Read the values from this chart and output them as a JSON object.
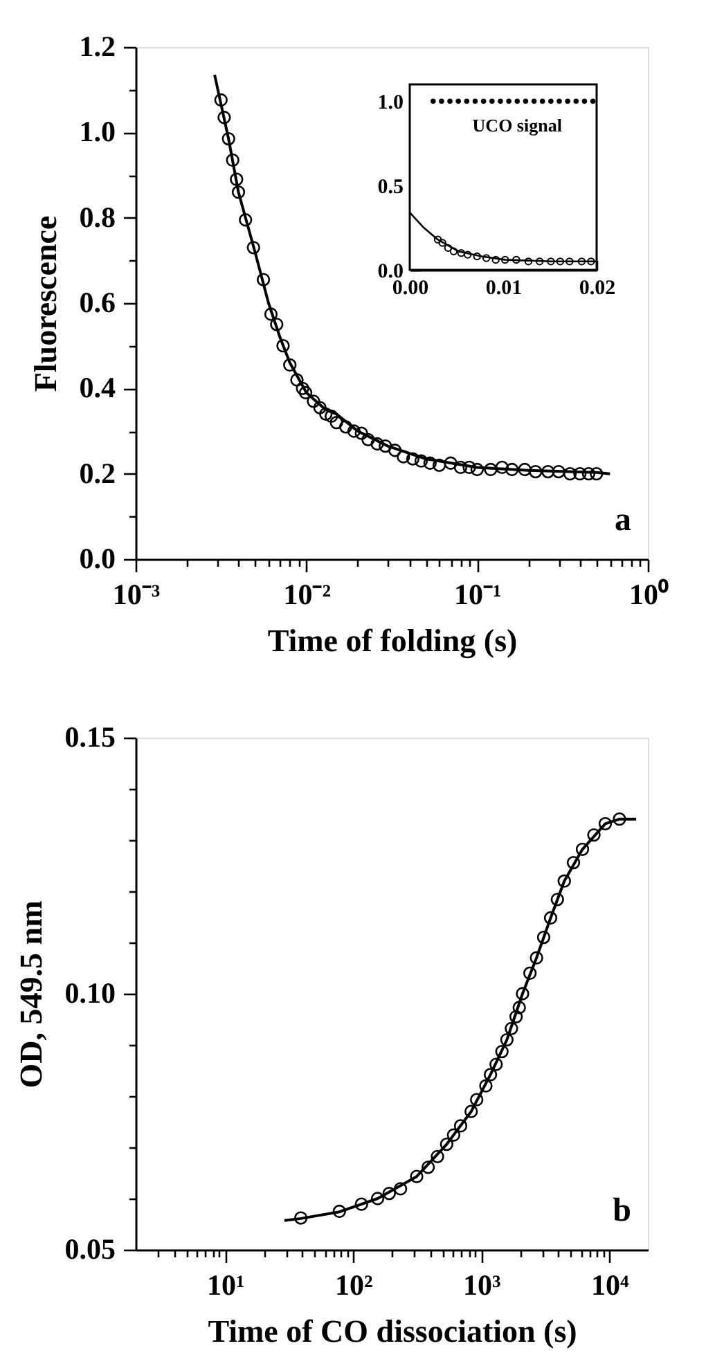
{
  "chart_data": [
    {
      "type": "scatter",
      "xlabel": "Time of folding (s)",
      "ylabel": "Fluorescence",
      "log": "x",
      "xlim": [
        0.001,
        1
      ],
      "ylim": [
        0,
        1.2
      ],
      "xticks": [
        {
          "value": 0.001,
          "label": "10⁻³"
        },
        {
          "value": 0.002,
          "label": null
        },
        {
          "value": 0.003,
          "label": null
        },
        {
          "value": 0.004,
          "label": null
        },
        {
          "value": 0.005,
          "label": null
        },
        {
          "value": 0.006,
          "label": null
        },
        {
          "value": 0.007,
          "label": null
        },
        {
          "value": 0.008,
          "label": null
        },
        {
          "value": 0.009,
          "label": null
        },
        {
          "value": 0.01,
          "label": "10⁻²"
        },
        {
          "value": 0.02,
          "label": null
        },
        {
          "value": 0.03,
          "label": null
        },
        {
          "value": 0.04,
          "label": null
        },
        {
          "value": 0.05,
          "label": null
        },
        {
          "value": 0.06,
          "label": null
        },
        {
          "value": 0.07,
          "label": null
        },
        {
          "value": 0.08,
          "label": null
        },
        {
          "value": 0.09,
          "label": null
        },
        {
          "value": 0.1,
          "label": "10⁻¹"
        },
        {
          "value": 0.2,
          "label": null
        },
        {
          "value": 0.3,
          "label": null
        },
        {
          "value": 0.4,
          "label": null
        },
        {
          "value": 0.5,
          "label": null
        },
        {
          "value": 0.6,
          "label": null
        },
        {
          "value": 0.7,
          "label": null
        },
        {
          "value": 0.8,
          "label": null
        },
        {
          "value": 0.9,
          "label": null
        },
        {
          "value": 1,
          "label": "10⁰"
        }
      ],
      "yticks": [
        {
          "value": 0,
          "label": "0.0"
        },
        {
          "value": 0.1,
          "label": null
        },
        {
          "value": 0.2,
          "label": "0.2"
        },
        {
          "value": 0.3,
          "label": null
        },
        {
          "value": 0.4,
          "label": "0.4"
        },
        {
          "value": 0.5,
          "label": null
        },
        {
          "value": 0.6,
          "label": "0.6"
        },
        {
          "value": 0.7,
          "label": null
        },
        {
          "value": 0.8,
          "label": "0.8"
        },
        {
          "value": 0.9,
          "label": null
        },
        {
          "value": 1.0,
          "label": "1.0"
        },
        {
          "value": 1.1,
          "label": null
        },
        {
          "value": 1.2,
          "label": "1.2"
        }
      ],
      "grid": false,
      "annotations": [
        "a"
      ],
      "series": [
        {
          "marker": "circle",
          "color": "#000000",
          "x": [
            0.00316,
            0.0033,
            0.0035,
            0.0037,
            0.0039,
            0.004,
            0.0044,
            0.0049,
            0.0056,
            0.0062,
            0.0067,
            0.0073,
            0.008,
            0.0088,
            0.0095,
            0.0099,
            0.011,
            0.012,
            0.013,
            0.014,
            0.015,
            0.017,
            0.019,
            0.021,
            0.023,
            0.026,
            0.029,
            0.033,
            0.037,
            0.042,
            0.047,
            0.053,
            0.06,
            0.07,
            0.08,
            0.09,
            0.1,
            0.12,
            0.14,
            0.16,
            0.19,
            0.22,
            0.26,
            0.3,
            0.35,
            0.4,
            0.45,
            0.5
          ],
          "values": [
            1.076,
            1.035,
            0.985,
            0.935,
            0.89,
            0.86,
            0.795,
            0.73,
            0.655,
            0.574,
            0.55,
            0.5,
            0.455,
            0.42,
            0.4,
            0.39,
            0.37,
            0.355,
            0.34,
            0.335,
            0.32,
            0.31,
            0.3,
            0.295,
            0.28,
            0.27,
            0.265,
            0.255,
            0.24,
            0.235,
            0.23,
            0.225,
            0.22,
            0.225,
            0.215,
            0.215,
            0.21,
            0.21,
            0.215,
            0.21,
            0.21,
            0.205,
            0.205,
            0.205,
            0.2,
            0.2,
            0.2,
            0.2
          ]
        },
        {
          "type": "line",
          "color": "#000000",
          "line_style": "solid",
          "x": [
            0.0029,
            0.0035,
            0.004,
            0.005,
            0.006,
            0.007,
            0.008,
            0.01,
            0.013,
            0.015,
            0.02,
            0.03,
            0.05,
            0.1,
            0.2,
            0.5,
            0.6
          ],
          "values": [
            1.135,
            0.985,
            0.86,
            0.72,
            0.6,
            0.52,
            0.46,
            0.39,
            0.35,
            0.34,
            0.3,
            0.265,
            0.235,
            0.215,
            0.208,
            0.203,
            0.2
          ]
        }
      ]
    },
    {
      "type": "scatter",
      "xlim": [
        0,
        0.02
      ],
      "ylim": [
        0,
        1.1
      ],
      "xticks": [
        {
          "value": 0,
          "label": "0.00"
        },
        {
          "value": 0.002,
          "label": null
        },
        {
          "value": 0.004,
          "label": null
        },
        {
          "value": 0.006,
          "label": null
        },
        {
          "value": 0.008,
          "label": null
        },
        {
          "value": 0.01,
          "label": "0.01"
        },
        {
          "value": 0.012,
          "label": null
        },
        {
          "value": 0.014,
          "label": null
        },
        {
          "value": 0.016,
          "label": null
        },
        {
          "value": 0.018,
          "label": null
        },
        {
          "value": 0.02,
          "label": "0.02"
        }
      ],
      "yticks": [
        {
          "value": 0,
          "label": "0.0"
        },
        {
          "value": 0.1,
          "label": null
        },
        {
          "value": 0.2,
          "label": null
        },
        {
          "value": 0.3,
          "label": null
        },
        {
          "value": 0.4,
          "label": null
        },
        {
          "value": 0.5,
          "label": "0.5"
        },
        {
          "value": 0.6,
          "label": null
        },
        {
          "value": 0.7,
          "label": null
        },
        {
          "value": 0.8,
          "label": null
        },
        {
          "value": 0.9,
          "label": null
        },
        {
          "value": 1.0,
          "label": "1.0"
        }
      ],
      "grid": false,
      "series": [
        {
          "name": "UCO signal",
          "marker": "circle",
          "color": "#000000",
          "x": [
            0.0025,
            0.0034,
            0.0043,
            0.0052,
            0.0061,
            0.007,
            0.0079,
            0.0088,
            0.0097,
            0.0106,
            0.0115,
            0.0124,
            0.0133,
            0.0142,
            0.0151,
            0.016,
            0.0169,
            0.0178,
            0.0187,
            0.0196
          ],
          "values": [
            1.0,
            1.0,
            1.0,
            1.0,
            1.0,
            1.0,
            1.0,
            1.0,
            1.0,
            1.0,
            1.0,
            1.0,
            1.0,
            1.0,
            1.0,
            1.0,
            1.0,
            1.0,
            1.0,
            1.0
          ]
        },
        {
          "marker": "circle",
          "color": "#000000",
          "x": [
            0.003,
            0.0035,
            0.0041,
            0.0047,
            0.0055,
            0.0062,
            0.0072,
            0.0082,
            0.0092,
            0.0102,
            0.0114,
            0.0127,
            0.0139,
            0.0151,
            0.0161,
            0.0171,
            0.0184,
            0.0194
          ],
          "values": [
            0.18,
            0.16,
            0.13,
            0.11,
            0.1,
            0.09,
            0.08,
            0.07,
            0.06,
            0.06,
            0.06,
            0.05,
            0.05,
            0.05,
            0.05,
            0.05,
            0.05,
            0.05
          ]
        },
        {
          "type": "line",
          "color": "#000000",
          "line_style": "solid",
          "x": [
            0,
            0.0015,
            0.003,
            0.0052,
            0.0077,
            0.0102,
            0.0151,
            0.02
          ],
          "values": [
            0.34,
            0.25,
            0.18,
            0.11,
            0.08,
            0.06,
            0.05,
            0.05
          ]
        }
      ]
    },
    {
      "type": "scatter",
      "xlabel": "Time of CO dissociation (s)",
      "ylabel": "OD, 549.5 nm",
      "log": "x",
      "xlim": [
        2,
        20000
      ],
      "ylim": [
        0.05,
        0.15
      ],
      "xticks": [
        {
          "value": 3,
          "label": null
        },
        {
          "value": 4,
          "label": null
        },
        {
          "value": 5,
          "label": null
        },
        {
          "value": 6,
          "label": null
        },
        {
          "value": 7,
          "label": null
        },
        {
          "value": 8,
          "label": null
        },
        {
          "value": 9,
          "label": null
        },
        {
          "value": 10,
          "label": "10¹"
        },
        {
          "value": 20,
          "label": null
        },
        {
          "value": 30,
          "label": null
        },
        {
          "value": 40,
          "label": null
        },
        {
          "value": 50,
          "label": null
        },
        {
          "value": 60,
          "label": null
        },
        {
          "value": 70,
          "label": null
        },
        {
          "value": 80,
          "label": null
        },
        {
          "value": 90,
          "label": null
        },
        {
          "value": 100,
          "label": "10²"
        },
        {
          "value": 200,
          "label": null
        },
        {
          "value": 300,
          "label": null
        },
        {
          "value": 400,
          "label": null
        },
        {
          "value": 500,
          "label": null
        },
        {
          "value": 600,
          "label": null
        },
        {
          "value": 700,
          "label": null
        },
        {
          "value": 800,
          "label": null
        },
        {
          "value": 900,
          "label": null
        },
        {
          "value": 1000,
          "label": "10³"
        },
        {
          "value": 2000,
          "label": null
        },
        {
          "value": 3000,
          "label": null
        },
        {
          "value": 4000,
          "label": null
        },
        {
          "value": 5000,
          "label": null
        },
        {
          "value": 6000,
          "label": null
        },
        {
          "value": 7000,
          "label": null
        },
        {
          "value": 8000,
          "label": null
        },
        {
          "value": 9000,
          "label": null
        },
        {
          "value": 10000,
          "label": "10⁴"
        }
      ],
      "yticks": [
        {
          "value": 0.05,
          "label": "0.05"
        },
        {
          "value": 0.06,
          "label": null
        },
        {
          "value": 0.07,
          "label": null
        },
        {
          "value": 0.08,
          "label": null
        },
        {
          "value": 0.09,
          "label": null
        },
        {
          "value": 0.1,
          "label": "0.10"
        },
        {
          "value": 0.11,
          "label": null
        },
        {
          "value": 0.12,
          "label": null
        },
        {
          "value": 0.13,
          "label": null
        },
        {
          "value": 0.14,
          "label": null
        },
        {
          "value": 0.15,
          "label": "0.15"
        }
      ],
      "grid": false,
      "annotations": [
        "b"
      ],
      "series": [
        {
          "marker": "circle",
          "color": "#000000",
          "x": [
            39,
            78,
            116,
            155,
            191,
            234,
            313,
            385,
            455,
            537,
            608,
            690,
            834,
            921,
            1086,
            1180,
            1306,
            1450,
            1585,
            1720,
            1870,
            1980,
            2100,
            2400,
            2700,
            3070,
            3480,
            3930,
            4450,
            5250,
            6170,
            7580,
            9300,
            12000
          ],
          "values": [
            0.0562,
            0.0575,
            0.0589,
            0.06,
            0.061,
            0.0619,
            0.0643,
            0.0661,
            0.0682,
            0.0706,
            0.0724,
            0.0742,
            0.077,
            0.0793,
            0.082,
            0.0842,
            0.0862,
            0.0887,
            0.091,
            0.0932,
            0.0955,
            0.0973,
            0.1,
            0.104,
            0.107,
            0.111,
            0.1148,
            0.1184,
            0.122,
            0.1256,
            0.1282,
            0.131,
            0.1332,
            0.1341
          ]
        },
        {
          "type": "line",
          "color": "#000000",
          "line_style": "solid",
          "x": [
            29,
            39,
            78,
            155,
            313,
            537,
            834,
            1180,
            1585,
            2100,
            2700,
            3480,
            4450,
            6170,
            9300,
            12000,
            16200
          ],
          "values": [
            0.0557,
            0.0561,
            0.0574,
            0.06,
            0.0643,
            0.0706,
            0.077,
            0.0842,
            0.091,
            0.1,
            0.107,
            0.1148,
            0.122,
            0.1282,
            0.1332,
            0.1341,
            0.1341
          ]
        }
      ]
    }
  ]
}
